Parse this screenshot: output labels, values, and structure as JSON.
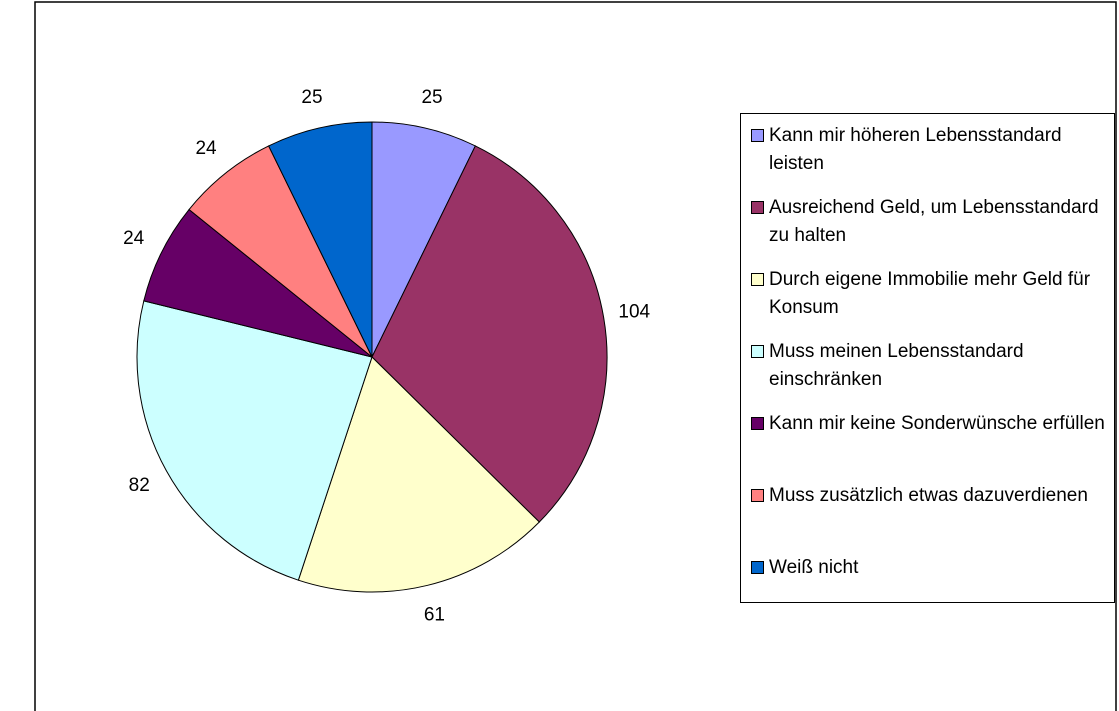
{
  "chart_data": {
    "type": "pie",
    "categories": [
      "Kann mir höheren Lebensstandard leisten",
      "Ausreichend Geld, um Lebensstandard zu halten",
      "Durch eigene Immobilie mehr Geld für Konsum",
      "Muss meinen Lebensstandard einschränken",
      "Kann mir keine Sonderwünsche erfüllen",
      "Muss zusätzlich etwas dazuverdienen",
      "Weiß nicht"
    ],
    "values": [
      25,
      104,
      61,
      82,
      24,
      24,
      25
    ],
    "colors": [
      "#9999ff",
      "#993366",
      "#ffffcc",
      "#ccffff",
      "#660066",
      "#ff8080",
      "#0066cc"
    ],
    "legend": "right"
  }
}
